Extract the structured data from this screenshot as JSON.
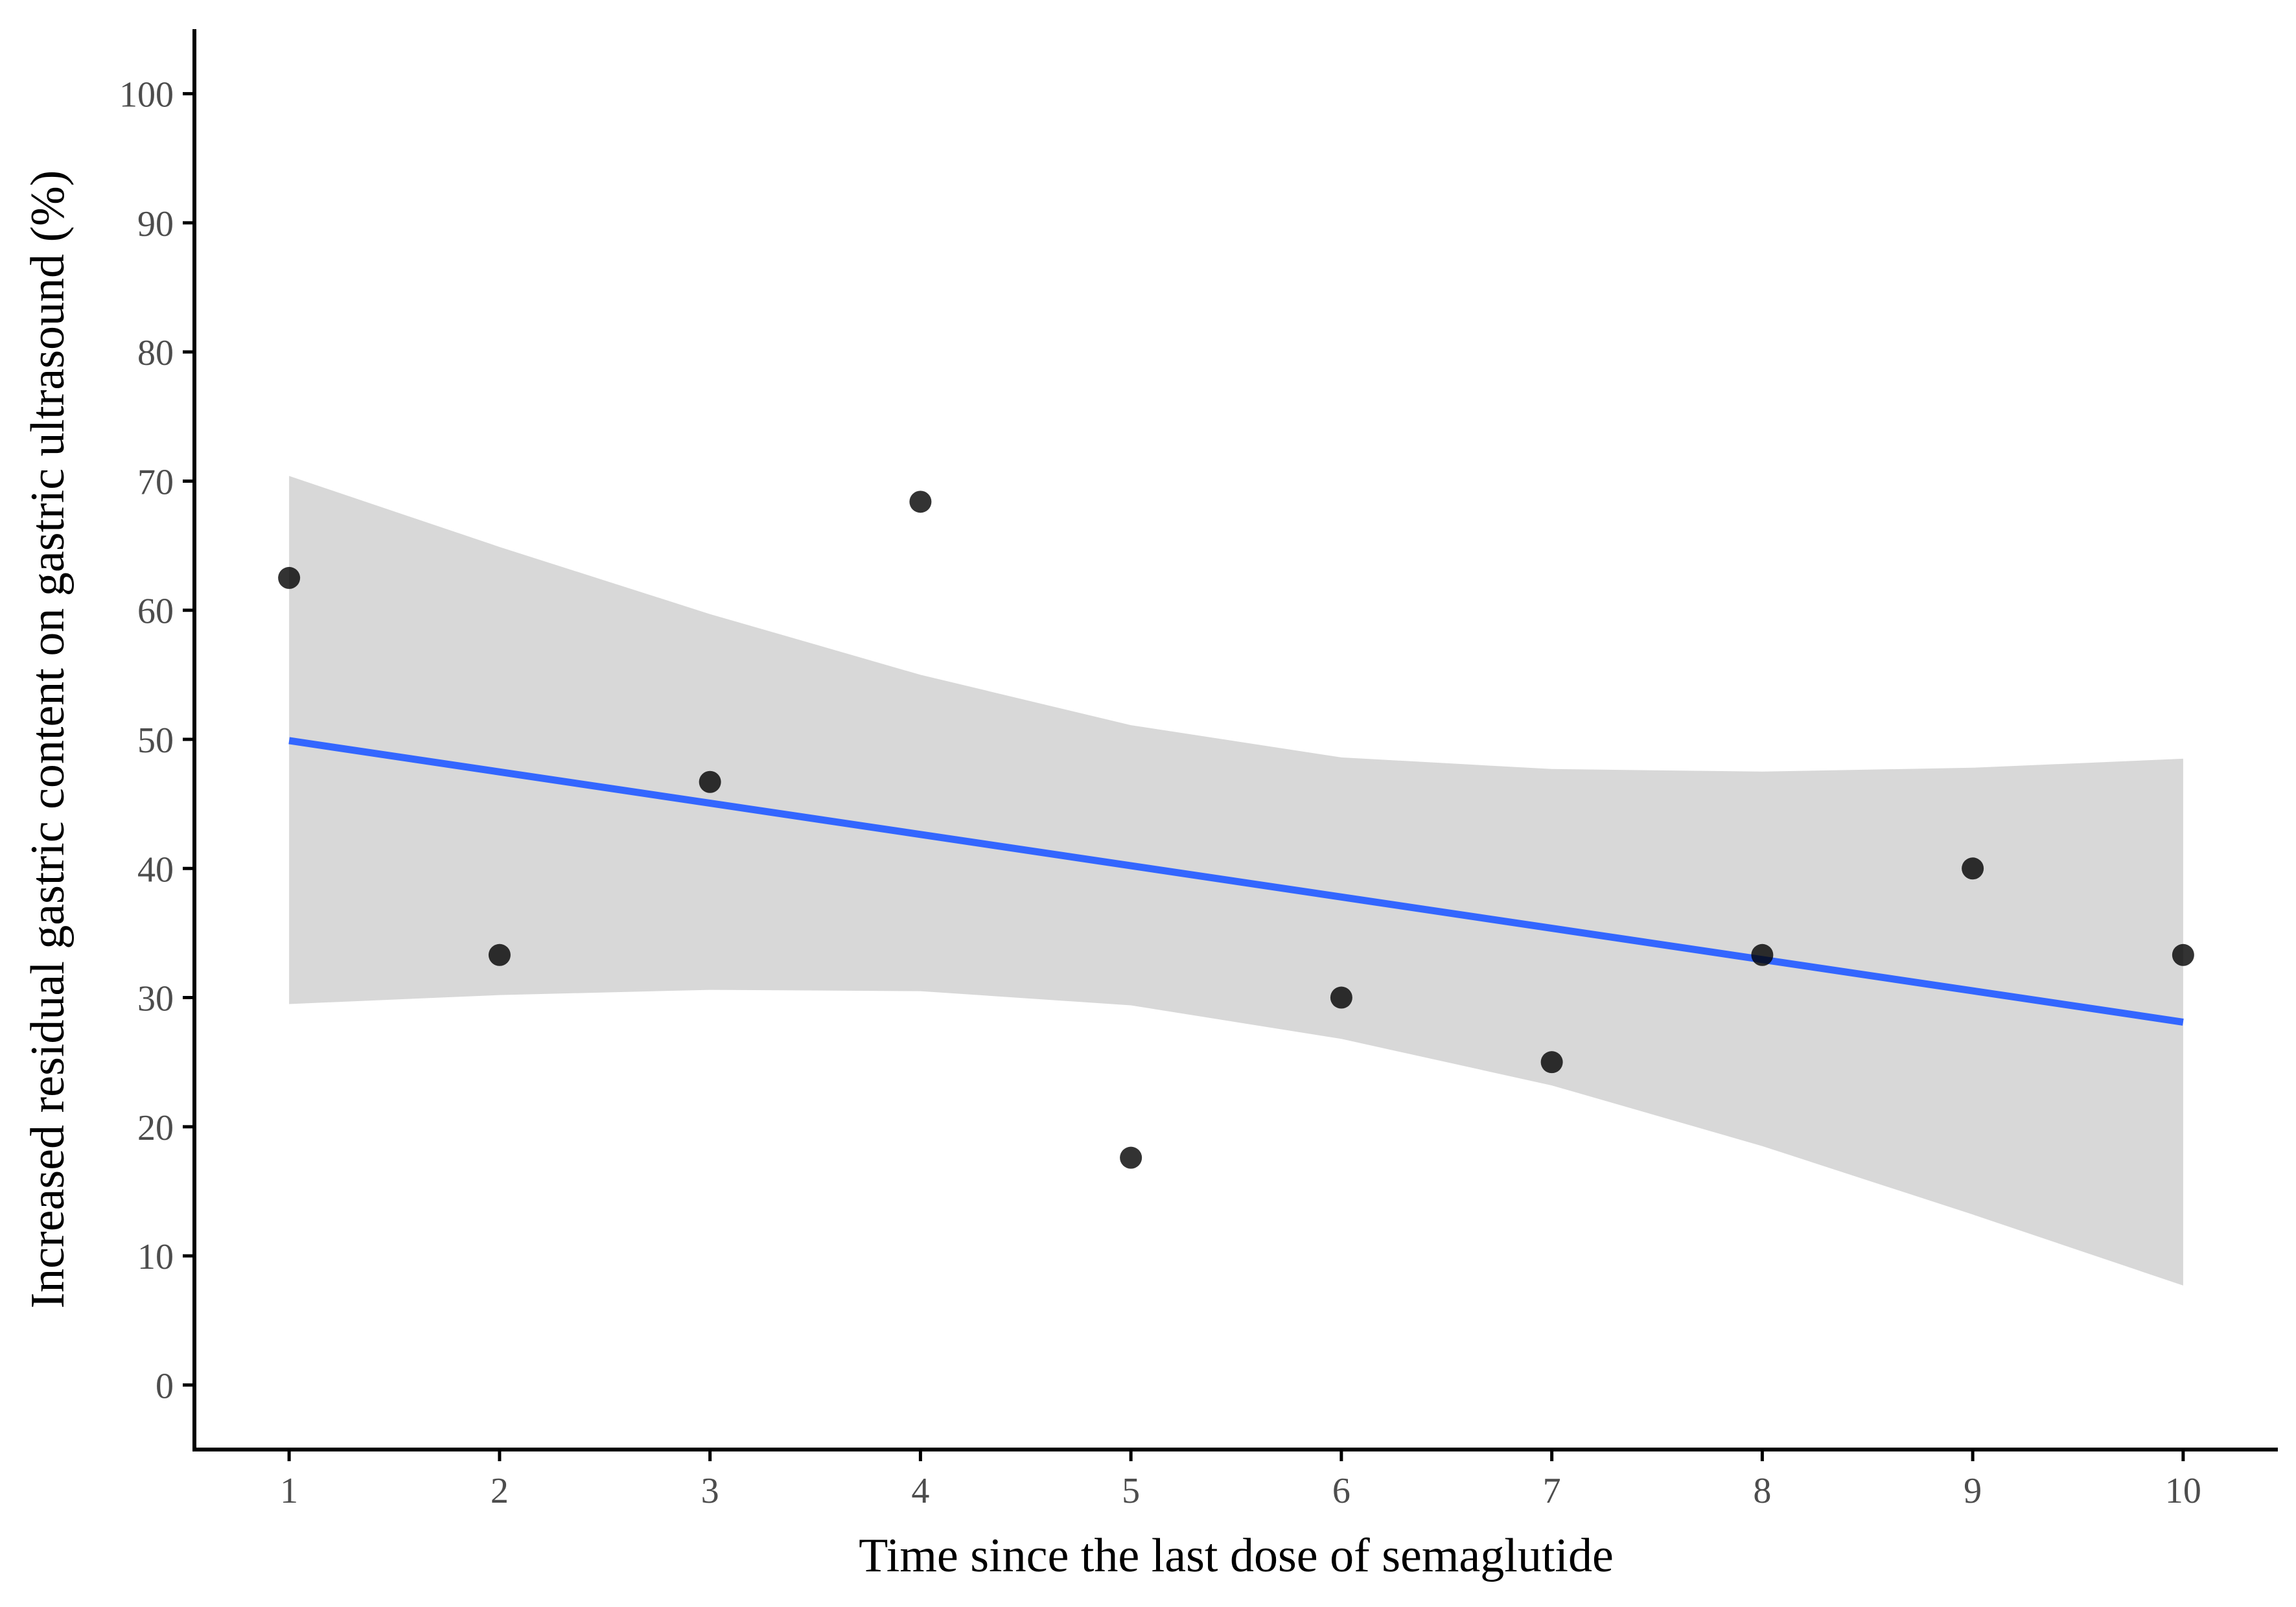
{
  "chart_data": {
    "type": "scatter",
    "title": "",
    "xlabel": "Time since the last dose of semaglutide",
    "ylabel": "Increased residual gastric content on gastric ultrasound (%)",
    "xlim": [
      0.55,
      10.45
    ],
    "ylim": [
      -5,
      105
    ],
    "x_ticks": [
      1,
      2,
      3,
      4,
      5,
      6,
      7,
      8,
      9,
      10
    ],
    "y_ticks": [
      0,
      10,
      20,
      30,
      40,
      50,
      60,
      70,
      80,
      90,
      100
    ],
    "grid": false,
    "legend": "none",
    "points": [
      {
        "x": 1,
        "y": 62.5
      },
      {
        "x": 2,
        "y": 33.3
      },
      {
        "x": 3,
        "y": 46.7
      },
      {
        "x": 4,
        "y": 68.4
      },
      {
        "x": 5,
        "y": 17.6
      },
      {
        "x": 6,
        "y": 30.0
      },
      {
        "x": 7,
        "y": 25.0
      },
      {
        "x": 8,
        "y": 33.3
      },
      {
        "x": 9,
        "y": 40.0
      },
      {
        "x": 10,
        "y": 33.3
      }
    ],
    "fit_line": {
      "x": [
        1,
        10
      ],
      "y": [
        49.9,
        28.1
      ]
    },
    "confidence_band": {
      "x": [
        1,
        2,
        3,
        4,
        5,
        6,
        7,
        8,
        9,
        10
      ],
      "upper": [
        70.4,
        64.9,
        59.7,
        55.0,
        51.1,
        48.6,
        47.7,
        47.5,
        47.8,
        48.5
      ],
      "lower": [
        29.5,
        30.2,
        30.6,
        30.5,
        29.4,
        26.8,
        23.2,
        18.5,
        13.2,
        7.7
      ]
    },
    "colors": {
      "point": "#000000",
      "fit_line": "#3366ff",
      "band": "#d6d6d6",
      "axis": "#000000",
      "tick_label": "#4d4d4d"
    }
  }
}
